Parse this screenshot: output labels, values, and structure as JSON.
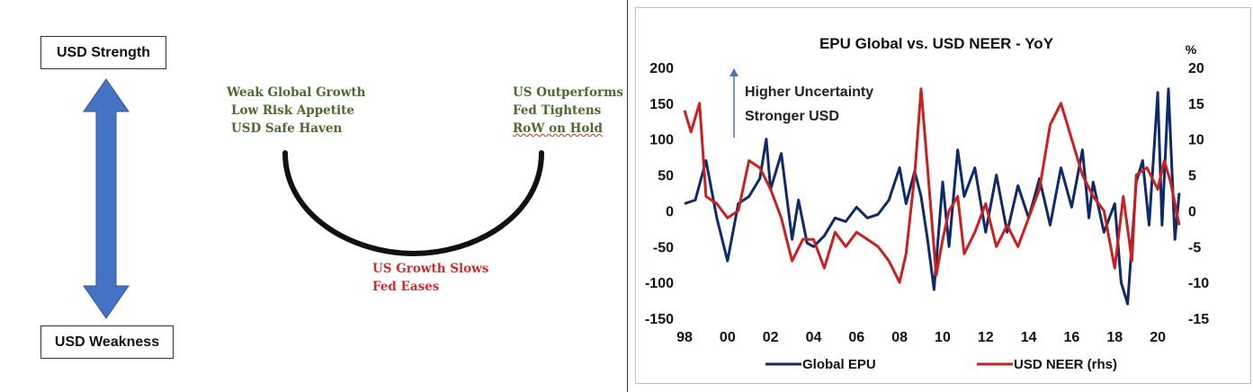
{
  "diagram": {
    "top_box": "USD Strength",
    "bottom_box": "USD Weakness",
    "left_lines": [
      "Weak Global Growth",
      "Low Risk Appetite",
      "USD Safe Haven"
    ],
    "right_lines": [
      "US Outperforms",
      "Fed Tightens",
      "RoW on Hold"
    ],
    "bottom_lines": [
      "US Growth Slows",
      "Fed Eases"
    ],
    "colors": {
      "arrow": "#4472c4",
      "green_text": "#4b6a2b",
      "red_text": "#d12b2b",
      "arc": "#111111"
    }
  },
  "chart_data": {
    "type": "line",
    "title": "EPU Global vs. USD NEER - YoY",
    "right_axis_unit": "%",
    "annotation": [
      "Higher Uncertainty",
      "Stronger USD"
    ],
    "x_ticks": [
      "98",
      "00",
      "02",
      "04",
      "06",
      "08",
      "10",
      "12",
      "14",
      "16",
      "18",
      "20"
    ],
    "y_left": {
      "min": -150,
      "max": 200,
      "ticks": [
        200,
        150,
        100,
        50,
        0,
        -50,
        -100,
        -150
      ]
    },
    "y_right": {
      "min": -15,
      "max": 20,
      "ticks": [
        20,
        15,
        10,
        5,
        0,
        -5,
        -10,
        -15
      ]
    },
    "x_range": [
      1998,
      2021
    ],
    "grid": false,
    "legend_position": "bottom",
    "series": [
      {
        "name": "Global EPU",
        "axis": "left",
        "color": "#0d2b6b",
        "x": [
          1998.0,
          1998.5,
          1999.0,
          1999.5,
          2000.0,
          2000.5,
          2001.0,
          2001.5,
          2001.8,
          2002.0,
          2002.5,
          2003.0,
          2003.3,
          2003.7,
          2004.0,
          2004.5,
          2005.0,
          2005.5,
          2006.0,
          2006.5,
          2007.0,
          2007.5,
          2008.0,
          2008.3,
          2008.7,
          2009.0,
          2009.3,
          2009.6,
          2010.0,
          2010.3,
          2010.7,
          2011.0,
          2011.5,
          2012.0,
          2012.5,
          2013.0,
          2013.5,
          2014.0,
          2014.5,
          2015.0,
          2015.5,
          2016.0,
          2016.5,
          2016.8,
          2017.0,
          2017.5,
          2018.0,
          2018.3,
          2018.6,
          2019.0,
          2019.3,
          2019.6,
          2020.0,
          2020.2,
          2020.5,
          2020.8,
          2021.0
        ],
        "values": [
          10,
          15,
          70,
          -10,
          -70,
          10,
          20,
          45,
          100,
          30,
          80,
          -40,
          15,
          -45,
          -50,
          -35,
          -10,
          -15,
          5,
          -10,
          -5,
          15,
          60,
          10,
          55,
          20,
          -40,
          -110,
          40,
          -50,
          85,
          20,
          60,
          -30,
          50,
          -30,
          35,
          -10,
          45,
          -20,
          60,
          5,
          85,
          -10,
          40,
          -30,
          10,
          -100,
          -130,
          40,
          70,
          -20,
          165,
          -20,
          170,
          -40,
          25
        ]
      },
      {
        "name": "USD NEER (rhs)",
        "axis": "right",
        "color": "#cc1f1f",
        "x": [
          1998.0,
          1998.3,
          1998.7,
          1999.0,
          1999.5,
          2000.0,
          2000.5,
          2001.0,
          2001.5,
          2002.0,
          2002.5,
          2003.0,
          2003.5,
          2004.0,
          2004.5,
          2005.0,
          2005.5,
          2006.0,
          2006.5,
          2007.0,
          2007.5,
          2008.0,
          2008.3,
          2008.7,
          2009.0,
          2009.3,
          2009.7,
          2010.0,
          2010.3,
          2010.7,
          2011.0,
          2011.5,
          2012.0,
          2012.5,
          2013.0,
          2013.5,
          2014.0,
          2014.5,
          2015.0,
          2015.5,
          2015.8,
          2016.0,
          2016.5,
          2017.0,
          2017.5,
          2018.0,
          2018.4,
          2018.8,
          2019.0,
          2019.5,
          2020.0,
          2020.3,
          2020.6,
          2021.0
        ],
        "values": [
          14,
          11,
          15,
          2,
          1,
          -1,
          0,
          7,
          6,
          3,
          -1,
          -7,
          -4,
          -4,
          -8,
          -3,
          -5,
          -3,
          -4,
          -5,
          -7,
          -10,
          -6,
          5,
          17,
          6,
          -9,
          -4,
          0,
          2,
          -6,
          -3,
          1,
          -5,
          -2,
          -5,
          -1,
          3,
          12,
          15,
          12,
          10,
          5,
          2,
          0,
          -8,
          2,
          -7,
          5,
          6,
          3,
          7,
          4,
          -2
        ]
      }
    ]
  }
}
